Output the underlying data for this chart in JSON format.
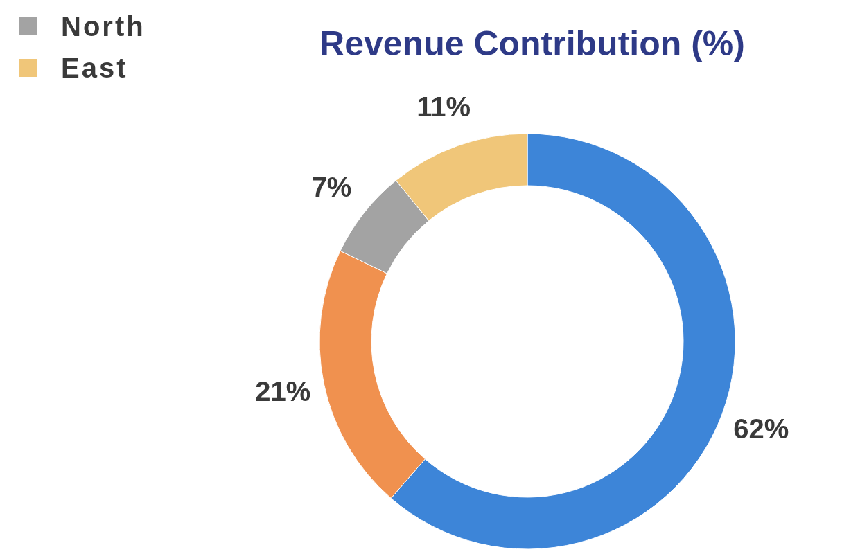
{
  "chart_data": {
    "type": "donut",
    "title": "Revenue Contribution (%)",
    "categories": [
      null,
      null,
      "North",
      "East"
    ],
    "values": [
      62,
      21,
      7,
      11
    ],
    "colors": [
      "#3d85d8",
      "#f0914f",
      "#a3a3a3",
      "#f0c679"
    ],
    "value_labels": [
      "62%",
      "21%",
      "7%",
      "11%"
    ],
    "legend": "top left"
  }
}
